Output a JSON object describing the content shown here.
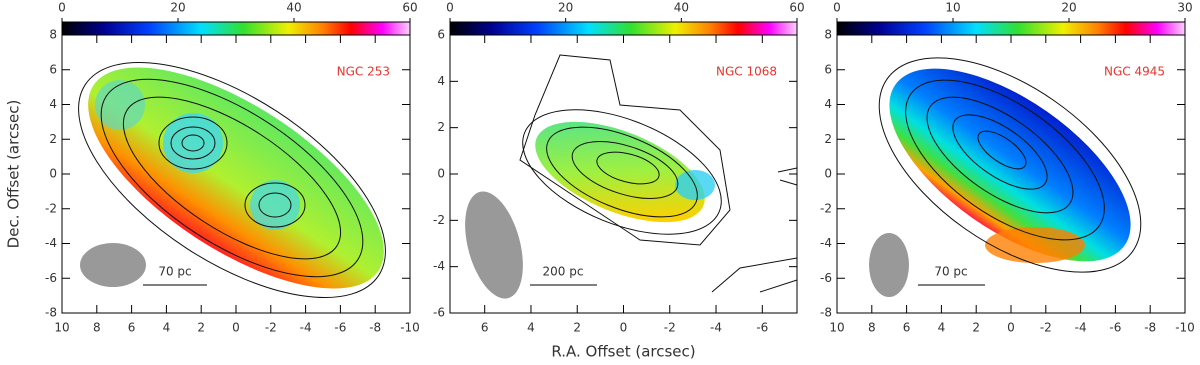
{
  "chart_data": [
    {
      "type": "image",
      "label": "NGC 253",
      "scale_label": "70 pc",
      "y_label": "Dec. Offset (arcsec)",
      "xlim": [
        10,
        -10
      ],
      "xticks": [
        10,
        8,
        6,
        4,
        2,
        0,
        -2,
        -4,
        -6,
        -8,
        -10
      ],
      "ylim": [
        -8,
        8
      ],
      "yticks": [
        -8,
        -6,
        -4,
        -2,
        0,
        2,
        4,
        6,
        8
      ],
      "clim": [
        0,
        60
      ],
      "cticks": [
        0,
        20,
        40,
        60
      ]
    },
    {
      "type": "image",
      "label": "NGC 1068",
      "scale_label": "200 pc",
      "x_label": "R.A. Offset (arcsec)",
      "xlim": [
        7.5,
        -7.5
      ],
      "xticks": [
        6,
        4,
        2,
        0,
        -2,
        -4,
        -6
      ],
      "ylim": [
        -6,
        6
      ],
      "yticks": [
        -6,
        -4,
        -2,
        0,
        2,
        4,
        6
      ],
      "clim": [
        0,
        60
      ],
      "cticks": [
        0,
        20,
        40,
        60
      ]
    },
    {
      "type": "image",
      "label": "NGC 4945",
      "scale_label": "70 pc",
      "xlim": [
        10,
        -10
      ],
      "xticks": [
        10,
        8,
        6,
        4,
        2,
        0,
        -2,
        -4,
        -6,
        -8,
        -10
      ],
      "ylim": [
        -8,
        8
      ],
      "yticks": [
        -8,
        -6,
        -4,
        -2,
        0,
        2,
        4,
        6,
        8
      ],
      "clim": [
        0,
        30
      ],
      "cticks": [
        0,
        10,
        20,
        30
      ]
    }
  ]
}
